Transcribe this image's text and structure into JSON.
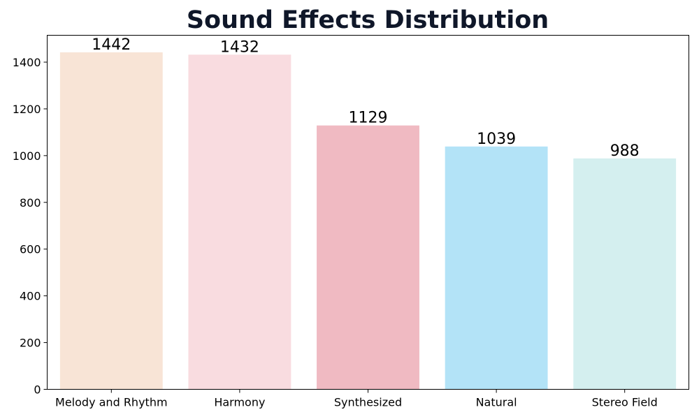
{
  "chart_data": {
    "type": "bar",
    "title": "Sound Effects Distribution",
    "xlabel": "",
    "ylabel": "",
    "categories": [
      "Melody and Rhythm",
      "Harmony",
      "Synthesized",
      "Natural",
      "Stereo Field"
    ],
    "values": [
      1442,
      1432,
      1129,
      1039,
      988
    ],
    "colors": [
      "#f8e4d6",
      "#f9dce0",
      "#f0bac2",
      "#b3e3f7",
      "#d4efef"
    ],
    "ylim": [
      0,
      1515
    ],
    "yticks": [
      0,
      200,
      400,
      600,
      800,
      1000,
      1200,
      1400
    ],
    "grid": false,
    "legend": "none",
    "data_labels": true
  }
}
